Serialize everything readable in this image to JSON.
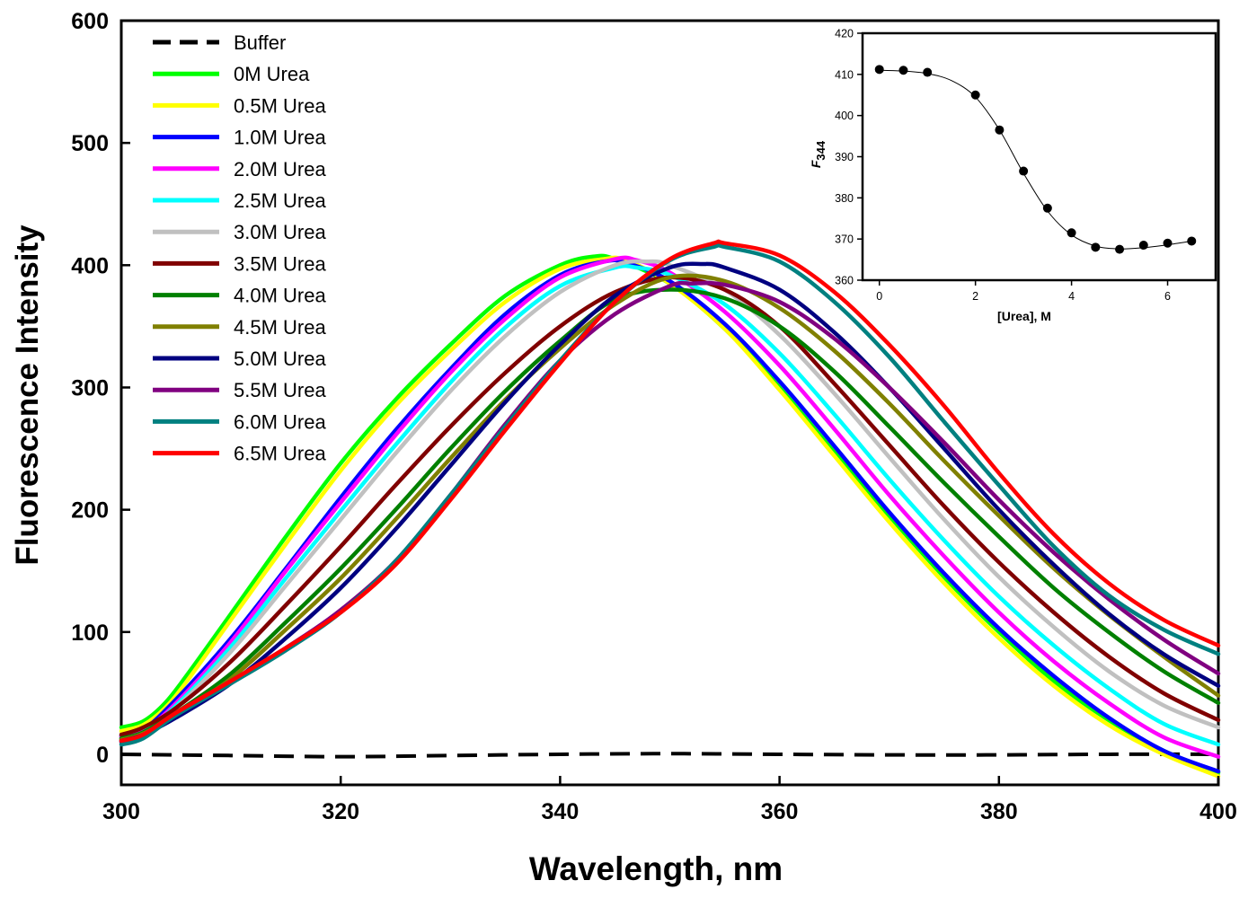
{
  "chart_data": [
    {
      "type": "line",
      "title": "",
      "xlabel": "Wavelength, nm",
      "ylabel": "Fluorescence Intensity",
      "xlim": [
        300,
        400
      ],
      "ylim": [
        -25,
        600
      ],
      "xticks": [
        300,
        320,
        340,
        360,
        380,
        400
      ],
      "yticks": [
        0,
        100,
        200,
        300,
        400,
        500,
        600
      ],
      "legend_position": "top-left",
      "series": [
        {
          "name": "Buffer",
          "color": "#000000",
          "dashed": true,
          "x": [
            300,
            310,
            320,
            330,
            340,
            350,
            360,
            370,
            380,
            390,
            400
          ],
          "y": [
            0,
            -1,
            -2,
            -1,
            0,
            0.5,
            0,
            -0.5,
            -0.5,
            0,
            0
          ]
        },
        {
          "name": "0M Urea",
          "color": "#00ff00",
          "dashed": false,
          "x": [
            300,
            302,
            304,
            306,
            310,
            315,
            320,
            325,
            330,
            335,
            340,
            343,
            345,
            350,
            355,
            360,
            365,
            370,
            375,
            380,
            385,
            390,
            395,
            400
          ],
          "y": [
            22,
            27,
            42,
            65,
            115,
            178,
            238,
            290,
            335,
            375,
            400,
            407,
            405,
            385,
            348,
            300,
            247,
            195,
            145,
            100,
            60,
            28,
            3,
            -15
          ]
        },
        {
          "name": "0.5M Urea",
          "color": "#ffff00",
          "dashed": false,
          "x": [
            300,
            302,
            304,
            306,
            310,
            315,
            320,
            325,
            330,
            335,
            340,
            344,
            346,
            350,
            355,
            360,
            365,
            370,
            375,
            380,
            385,
            390,
            395,
            400
          ],
          "y": [
            19,
            24,
            38,
            60,
            110,
            172,
            232,
            285,
            330,
            370,
            397,
            405,
            404,
            385,
            348,
            298,
            244,
            190,
            140,
            95,
            56,
            24,
            0,
            -18
          ]
        },
        {
          "name": "1.0M Urea",
          "color": "#0000ff",
          "dashed": false,
          "x": [
            300,
            302,
            305,
            310,
            315,
            320,
            325,
            330,
            335,
            340,
            344,
            346,
            350,
            355,
            360,
            365,
            370,
            375,
            380,
            385,
            390,
            395,
            400
          ],
          "y": [
            15,
            20,
            45,
            95,
            152,
            210,
            265,
            315,
            360,
            392,
            403,
            402,
            387,
            352,
            305,
            252,
            198,
            148,
            103,
            64,
            30,
            3,
            -14
          ]
        },
        {
          "name": "2.0M Urea",
          "color": "#ff00ff",
          "dashed": false,
          "x": [
            300,
            302,
            305,
            310,
            315,
            320,
            325,
            330,
            335,
            340,
            345,
            347,
            350,
            355,
            360,
            365,
            370,
            375,
            380,
            385,
            390,
            395,
            400
          ],
          "y": [
            14,
            19,
            42,
            92,
            150,
            206,
            261,
            312,
            356,
            390,
            405,
            404,
            394,
            362,
            318,
            266,
            212,
            162,
            116,
            76,
            42,
            14,
            -2
          ]
        },
        {
          "name": "2.5M Urea",
          "color": "#00ffff",
          "dashed": false,
          "x": [
            300,
            302,
            305,
            310,
            315,
            320,
            325,
            330,
            335,
            340,
            345,
            347,
            350,
            355,
            360,
            365,
            370,
            375,
            380,
            385,
            390,
            395,
            400
          ],
          "y": [
            13,
            18,
            40,
            88,
            144,
            199,
            253,
            304,
            349,
            383,
            398,
            398,
            392,
            368,
            328,
            278,
            225,
            175,
            129,
            89,
            54,
            25,
            8
          ]
        },
        {
          "name": "3.0M Urea",
          "color": "#c0c0c0",
          "dashed": false,
          "x": [
            300,
            302,
            305,
            310,
            315,
            320,
            325,
            330,
            335,
            340,
            345,
            348,
            350,
            355,
            360,
            365,
            370,
            375,
            380,
            385,
            390,
            395,
            400
          ],
          "y": [
            12,
            17,
            38,
            84,
            138,
            192,
            246,
            297,
            342,
            378,
            400,
            403,
            400,
            380,
            343,
            295,
            243,
            192,
            145,
            104,
            68,
            40,
            22
          ]
        },
        {
          "name": "3.5M Urea",
          "color": "#800000",
          "dashed": false,
          "x": [
            300,
            302,
            305,
            310,
            315,
            320,
            325,
            330,
            335,
            340,
            345,
            350,
            355,
            360,
            365,
            370,
            375,
            380,
            385,
            390,
            395,
            400
          ],
          "y": [
            16,
            22,
            38,
            76,
            122,
            170,
            220,
            268,
            312,
            350,
            378,
            390,
            380,
            350,
            303,
            253,
            203,
            157,
            116,
            80,
            50,
            28
          ]
        },
        {
          "name": "4.0M Urea",
          "color": "#008000",
          "dashed": false,
          "x": [
            300,
            302,
            305,
            310,
            315,
            320,
            325,
            330,
            335,
            340,
            345,
            350,
            355,
            360,
            365,
            370,
            375,
            380,
            385,
            390,
            395,
            400
          ],
          "y": [
            13,
            18,
            34,
            66,
            108,
            152,
            200,
            250,
            297,
            338,
            372,
            380,
            373,
            350,
            313,
            268,
            222,
            178,
            136,
            100,
            68,
            42
          ]
        },
        {
          "name": "4.5M Urea",
          "color": "#808000",
          "dashed": false,
          "x": [
            300,
            302,
            305,
            310,
            315,
            320,
            325,
            330,
            335,
            340,
            345,
            350,
            355,
            360,
            365,
            370,
            375,
            380,
            385,
            390,
            395,
            400
          ],
          "y": [
            12,
            17,
            32,
            62,
            102,
            144,
            192,
            242,
            290,
            332,
            368,
            390,
            387,
            365,
            330,
            287,
            240,
            195,
            152,
            114,
            80,
            48
          ]
        },
        {
          "name": "5.0M Urea",
          "color": "#000080",
          "dashed": false,
          "x": [
            300,
            302,
            305,
            310,
            315,
            320,
            325,
            330,
            335,
            340,
            345,
            350,
            353,
            355,
            360,
            365,
            370,
            375,
            380,
            385,
            390,
            395,
            400
          ],
          "y": [
            11,
            16,
            30,
            58,
            95,
            136,
            184,
            236,
            288,
            335,
            375,
            398,
            401,
            398,
            380,
            345,
            300,
            250,
            200,
            155,
            115,
            82,
            56
          ]
        },
        {
          "name": "5.5M Urea",
          "color": "#800080",
          "dashed": false,
          "x": [
            300,
            302,
            305,
            310,
            315,
            320,
            325,
            330,
            335,
            340,
            345,
            350,
            352,
            355,
            360,
            365,
            370,
            375,
            380,
            385,
            390,
            395,
            400
          ],
          "y": [
            10,
            15,
            33,
            60,
            87,
            118,
            158,
            212,
            270,
            322,
            360,
            383,
            385,
            384,
            370,
            340,
            300,
            255,
            208,
            165,
            127,
            94,
            66
          ]
        },
        {
          "name": "6.0M Urea",
          "color": "#008080",
          "dashed": false,
          "x": [
            300,
            302,
            305,
            310,
            315,
            320,
            325,
            330,
            335,
            340,
            345,
            350,
            354,
            355,
            360,
            365,
            370,
            375,
            380,
            385,
            390,
            395,
            400
          ],
          "y": [
            8,
            13,
            32,
            58,
            85,
            116,
            158,
            212,
            268,
            322,
            370,
            404,
            415,
            415,
            403,
            370,
            325,
            272,
            220,
            170,
            130,
            102,
            82
          ]
        },
        {
          "name": "6.5M Urea",
          "color": "#ff0000",
          "dashed": false,
          "x": [
            300,
            302,
            305,
            310,
            315,
            320,
            325,
            330,
            335,
            340,
            345,
            350,
            354,
            355,
            360,
            365,
            370,
            375,
            380,
            385,
            390,
            395,
            400
          ],
          "y": [
            11,
            16,
            34,
            60,
            87,
            116,
            155,
            208,
            265,
            320,
            370,
            405,
            418,
            418,
            408,
            378,
            335,
            285,
            230,
            180,
            140,
            110,
            89
          ]
        }
      ]
    },
    {
      "type": "scatter",
      "title": "",
      "xlabel": "[Urea], M",
      "ylabel_main": "F",
      "ylabel_sub": "344",
      "xlim": [
        -0.35,
        7.0
      ],
      "ylim": [
        360,
        420
      ],
      "xticks": [
        0,
        2,
        4,
        6
      ],
      "yticks": [
        360,
        370,
        380,
        390,
        400,
        410,
        420
      ],
      "points": {
        "x": [
          0,
          0.5,
          1.0,
          2.0,
          2.5,
          3.0,
          3.5,
          4.0,
          4.5,
          5.0,
          5.5,
          6.0,
          6.5
        ],
        "y": [
          411.2,
          411.0,
          410.5,
          405.0,
          396.5,
          386.5,
          377.5,
          371.5,
          368.0,
          367.5,
          368.5,
          369.0,
          369.5
        ]
      },
      "fit_curve": {
        "x": [
          0,
          0.5,
          1.0,
          1.5,
          2.0,
          2.5,
          3.0,
          3.5,
          4.0,
          4.5,
          5.0,
          5.5,
          6.0,
          6.5
        ],
        "y": [
          411.0,
          410.8,
          410.2,
          408.5,
          404.5,
          396.5,
          386.0,
          376.8,
          371.0,
          368.3,
          367.6,
          367.9,
          368.6,
          369.5
        ]
      }
    }
  ]
}
